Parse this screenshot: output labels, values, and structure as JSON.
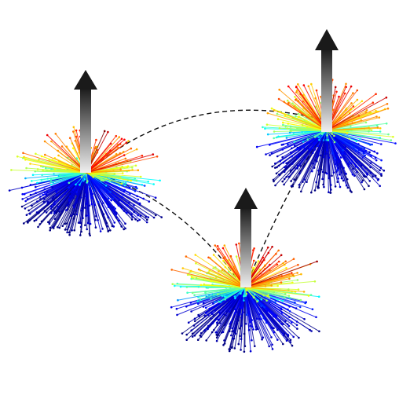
{
  "diagram": {
    "title": "",
    "clusters": [
      {
        "id": "left",
        "has_arrow": true,
        "vector_count": 420
      },
      {
        "id": "right",
        "has_arrow": true,
        "vector_count": 420
      },
      {
        "id": "bottom",
        "has_arrow": true,
        "vector_count": 420
      }
    ],
    "connections": [
      {
        "from": "left",
        "to": "right",
        "style": "dashed"
      },
      {
        "from": "left",
        "to": "bottom",
        "style": "dashed"
      },
      {
        "from": "bottom",
        "to": "right",
        "style": "dashed"
      }
    ],
    "colors": {
      "arrow_top": "#1a1a1a",
      "arrow_bottom": "#f0f0f0",
      "connection": "#111111",
      "background": "#ffffff"
    },
    "colormap": "jet"
  }
}
